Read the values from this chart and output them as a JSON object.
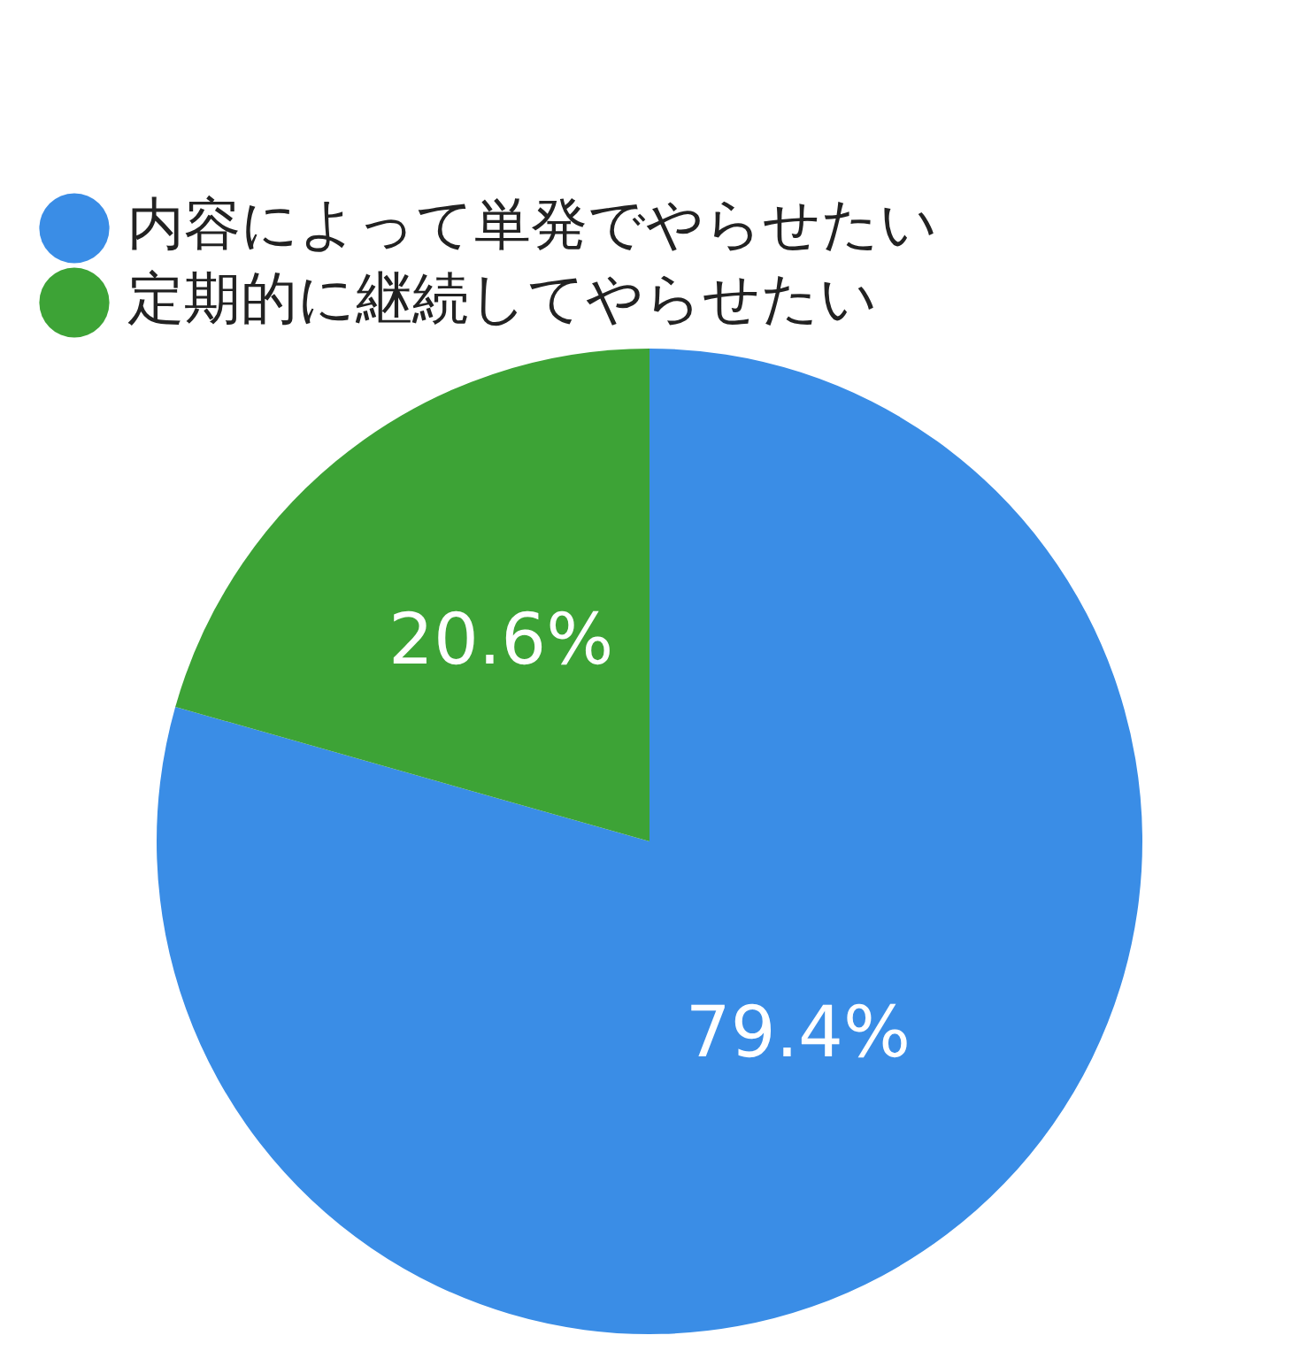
{
  "chart_data": {
    "type": "pie",
    "categories": [
      "内容によって単発でやらせたい",
      "定期的に継続してやらせたい"
    ],
    "values": [
      79.4,
      20.6
    ],
    "colors": [
      "#3a8de6",
      "#3da336"
    ],
    "value_labels": [
      "79.4%",
      "20.6%"
    ],
    "legend": "top left"
  }
}
